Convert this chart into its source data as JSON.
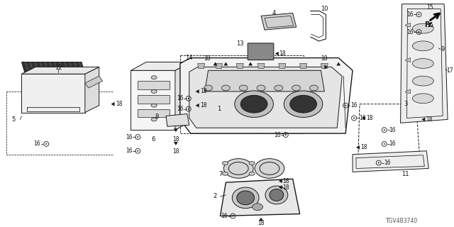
{
  "bg_color": "#ffffff",
  "line_color": "#1a1a1a",
  "gray_fill": "#aaaaaa",
  "dark_fill": "#333333",
  "mid_fill": "#777777",
  "diagram_id": "TGV4B3740",
  "fig_width": 6.4,
  "fig_height": 3.2,
  "dpi": 100
}
